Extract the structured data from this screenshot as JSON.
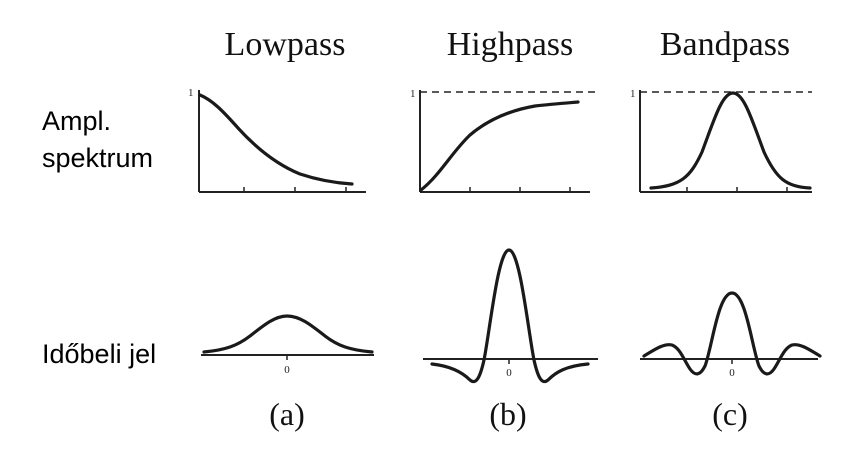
{
  "columns": [
    {
      "title": "Lowpass",
      "label": "(a)"
    },
    {
      "title": "Highpass",
      "label": "(b)"
    },
    {
      "title": "Bandpass",
      "label": "(c)"
    }
  ],
  "rows": {
    "spectrum_line1": "Ampl.",
    "spectrum_line2": "spektrum",
    "time": "Időbeli jel"
  },
  "ticks": {
    "one": "1",
    "zero": "0"
  }
}
